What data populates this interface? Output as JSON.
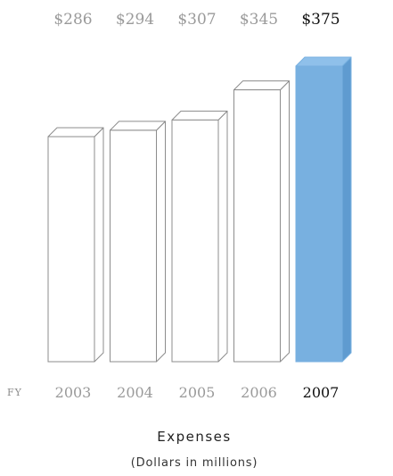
{
  "chart_data": {
    "type": "bar",
    "title": "Expenses",
    "subtitle": "(Dollars in millions)",
    "x_prefix": "FY",
    "categories": [
      "2003",
      "2004",
      "2005",
      "2006",
      "2007"
    ],
    "values": [
      286,
      294,
      307,
      345,
      375
    ],
    "value_labels": [
      "$286",
      "$294",
      "$307",
      "$345",
      "$375"
    ],
    "highlight_index": 4,
    "highlight_color": "#78b0e0",
    "bar_color": "#ffffff",
    "outline_color": "#8c8c8c",
    "style": "3d-outline"
  }
}
